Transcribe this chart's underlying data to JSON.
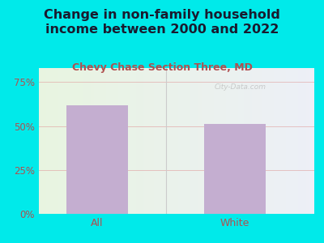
{
  "title": "Change in non-family household\nincome between 2000 and 2022",
  "subtitle": "Chevy Chase Section Three, MD",
  "categories": [
    "All",
    "White"
  ],
  "values": [
    62,
    51
  ],
  "bar_color": "#c4aed0",
  "title_color": "#1a1a2e",
  "subtitle_color": "#b05050",
  "tick_label_color": "#b05050",
  "background_outer": "#00eaea",
  "ylim": [
    0,
    83
  ],
  "yticks": [
    0,
    25,
    50,
    75
  ],
  "ytick_labels": [
    "0%",
    "25%",
    "50%",
    "75%"
  ],
  "title_fontsize": 11.5,
  "subtitle_fontsize": 9,
  "watermark": "City-Data.com",
  "grid_color": "#e0a0a0",
  "divider_color": "#cccccc"
}
